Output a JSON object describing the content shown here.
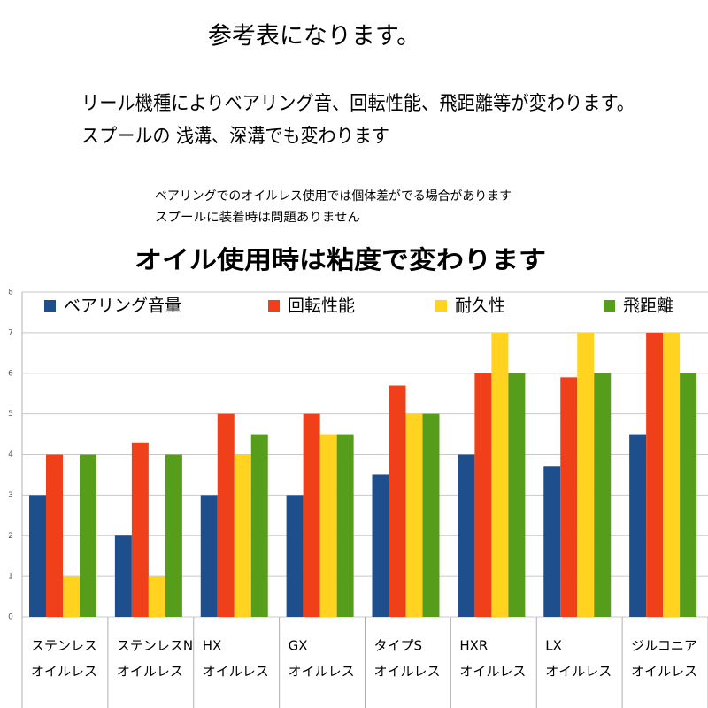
{
  "header": {
    "title": "参考表になります。",
    "lines": [
      "リール機種によりベアリング音、回転性能、飛距離等が変わります。",
      "スプールの 浅溝、深溝でも変わります"
    ],
    "notes": [
      "ベアリングでのオイルレス使用では個体差がでる場合があります",
      "スプールに装着時は問題ありません"
    ],
    "subtitle": "オイル使用時は粘度で変わります"
  },
  "chart_data": {
    "type": "bar",
    "categories": [
      [
        "ステンレス",
        "オイルレス"
      ],
      [
        "ステンレスN",
        "オイルレス"
      ],
      [
        "HX",
        "オイルレス"
      ],
      [
        "GX",
        "オイルレス"
      ],
      [
        "タイプS",
        "オイルレス"
      ],
      [
        "HXR",
        "オイルレス"
      ],
      [
        "LX",
        "オイルレス"
      ],
      [
        "ジルコニア",
        "オイルレス"
      ]
    ],
    "series": [
      {
        "name": "ベアリング音量",
        "color": "#1f4e8c",
        "values": [
          3,
          2,
          3,
          3,
          3.5,
          4,
          3.7,
          4.5
        ]
      },
      {
        "name": "回転性能",
        "color": "#f0401a",
        "values": [
          4,
          4.3,
          5,
          5,
          5.7,
          6,
          5.9,
          7
        ]
      },
      {
        "name": "耐久性",
        "color": "#ffd320",
        "values": [
          1,
          1,
          4,
          4.5,
          5,
          7,
          7,
          7
        ]
      },
      {
        "name": "飛距離",
        "color": "#579d1c",
        "values": [
          4,
          4,
          4.5,
          4.5,
          5,
          6,
          6,
          6
        ]
      }
    ],
    "ylim": [
      0,
      8
    ],
    "yticks": [
      0,
      1,
      2,
      3,
      4,
      5,
      6,
      7,
      8
    ],
    "grid": true,
    "legend": "top"
  }
}
